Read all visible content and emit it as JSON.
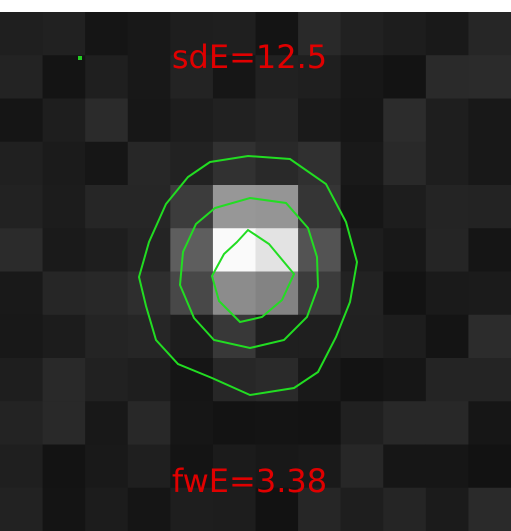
{
  "stats": {
    "sd_label": "sdE=12.5",
    "fw_label": "fwE=3.38"
  },
  "colors": {
    "background": "#ffffff",
    "text": "#e00000",
    "contour": "#22dd22",
    "frame": "#181818"
  },
  "image": {
    "description": "grayscale star cutout with green contours"
  }
}
